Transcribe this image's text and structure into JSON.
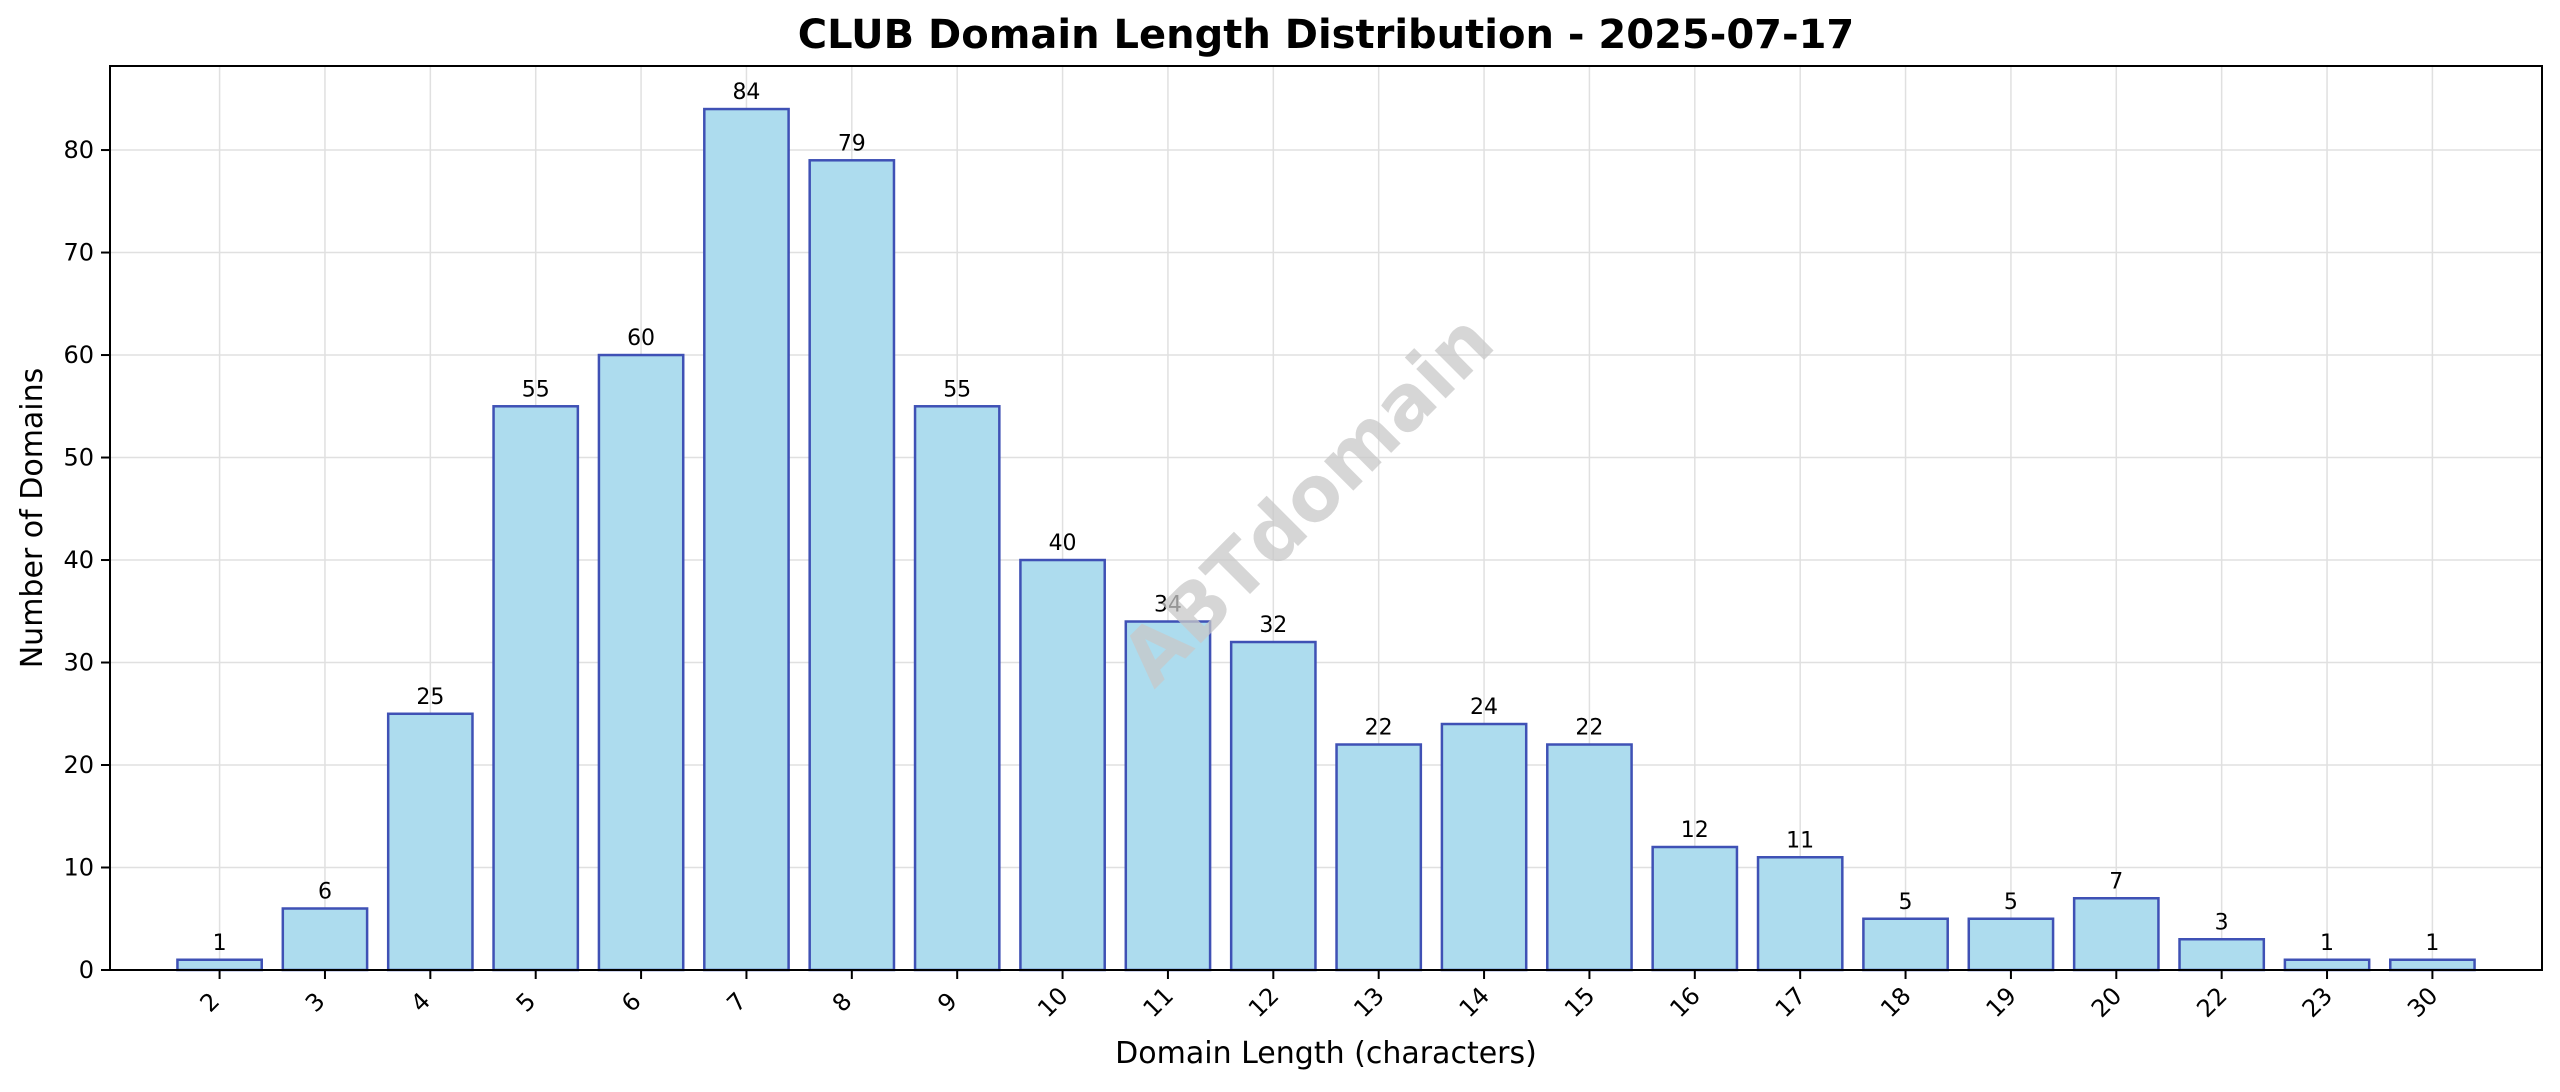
{
  "chart_data": {
    "type": "bar",
    "title": "CLUB Domain Length Distribution - 2025-07-17",
    "xlabel": "Domain Length (characters)",
    "ylabel": "Number of Domains",
    "categories": [
      "2",
      "3",
      "4",
      "5",
      "6",
      "7",
      "8",
      "9",
      "10",
      "11",
      "12",
      "13",
      "14",
      "15",
      "16",
      "17",
      "18",
      "19",
      "20",
      "22",
      "23",
      "30"
    ],
    "values": [
      1,
      6,
      25,
      55,
      60,
      84,
      79,
      55,
      40,
      34,
      32,
      22,
      24,
      22,
      12,
      11,
      5,
      5,
      7,
      3,
      1,
      1
    ],
    "ylim": [
      0,
      88.2
    ],
    "yticks": [
      0,
      10,
      20,
      30,
      40,
      50,
      60,
      70,
      80
    ],
    "grid": true,
    "watermark": "ABTdomain",
    "colors": {
      "bar_fill": "#ADDCEE",
      "bar_edge": "#3F51B5",
      "grid": "#e0e0e0",
      "watermark": "#c8c8c8"
    }
  }
}
